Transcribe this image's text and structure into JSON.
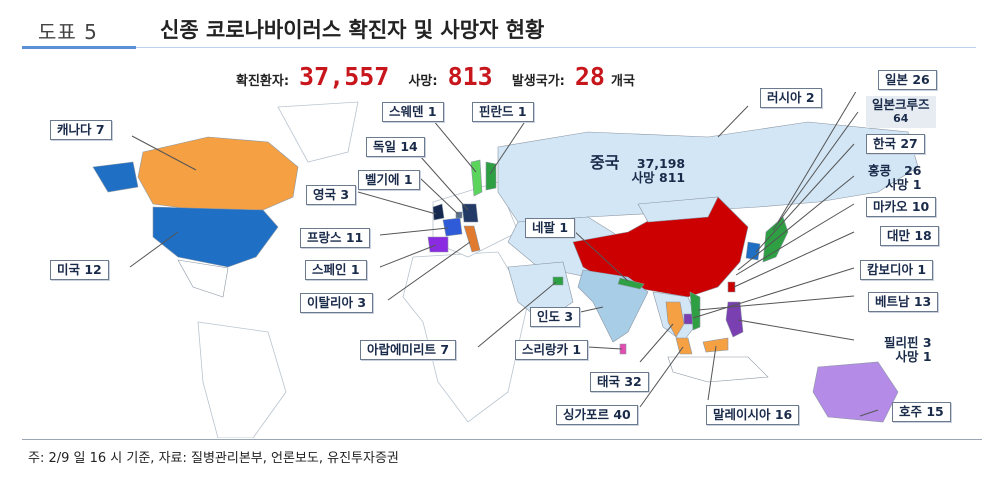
{
  "figure": {
    "number": "도표 5",
    "title": "신종 코로나바이러스 확진자 및 사망자 현황"
  },
  "summary": {
    "confirmed_label": "확진환자:",
    "confirmed_value": "37,557",
    "deaths_label": "사망:",
    "deaths_value": "813",
    "countries_label": "발생국가:",
    "countries_value": "28",
    "countries_unit": "개국"
  },
  "labels": {
    "canada": "캐나다 7",
    "usa": "미국 12",
    "sweden": "스웨덴 1",
    "finland": "핀란드 1",
    "germany": "독일 14",
    "belgium": "벨기에 1",
    "uk": "영국 3",
    "france": "프랑스 11",
    "spain": "스페인 1",
    "italy": "이탈리아 3",
    "uae": "아랍에미리트 7",
    "nepal": "네팔 1",
    "india": "인도 3",
    "srilanka": "스리랑카 1",
    "thailand": "태국 32",
    "singapore": "싱가포르 40",
    "malaysia": "말레이시아 16",
    "australia": "호주 15",
    "russia": "러시아 2",
    "japan": "일본 26",
    "cruise_name": "일본크루즈",
    "cruise_count": "64",
    "korea": "한국 27",
    "hongkong_name": "홍콩",
    "hongkong_count": "26",
    "hongkong_deaths": "사망  1",
    "macau": "마카오 10",
    "taiwan": "대만 18",
    "cambodia": "캄보디아 1",
    "vietnam": "베트남 13",
    "philippines_name": "필리핀 3",
    "philippines_deaths": "사망 1",
    "china_name": "중국",
    "china_count": "37,198",
    "china_deaths": "사망  811"
  },
  "colors": {
    "china": "#cc0000",
    "usa": "#1f6fc4",
    "canada": "#f5a043",
    "land": "#d3e6f5",
    "india": "#a8cde6",
    "accent": "#c8161d"
  },
  "footnote": "주: 2/9 일 16 시 기준, 자료: 질병관리본부, 언론보도, 유진투자증권"
}
